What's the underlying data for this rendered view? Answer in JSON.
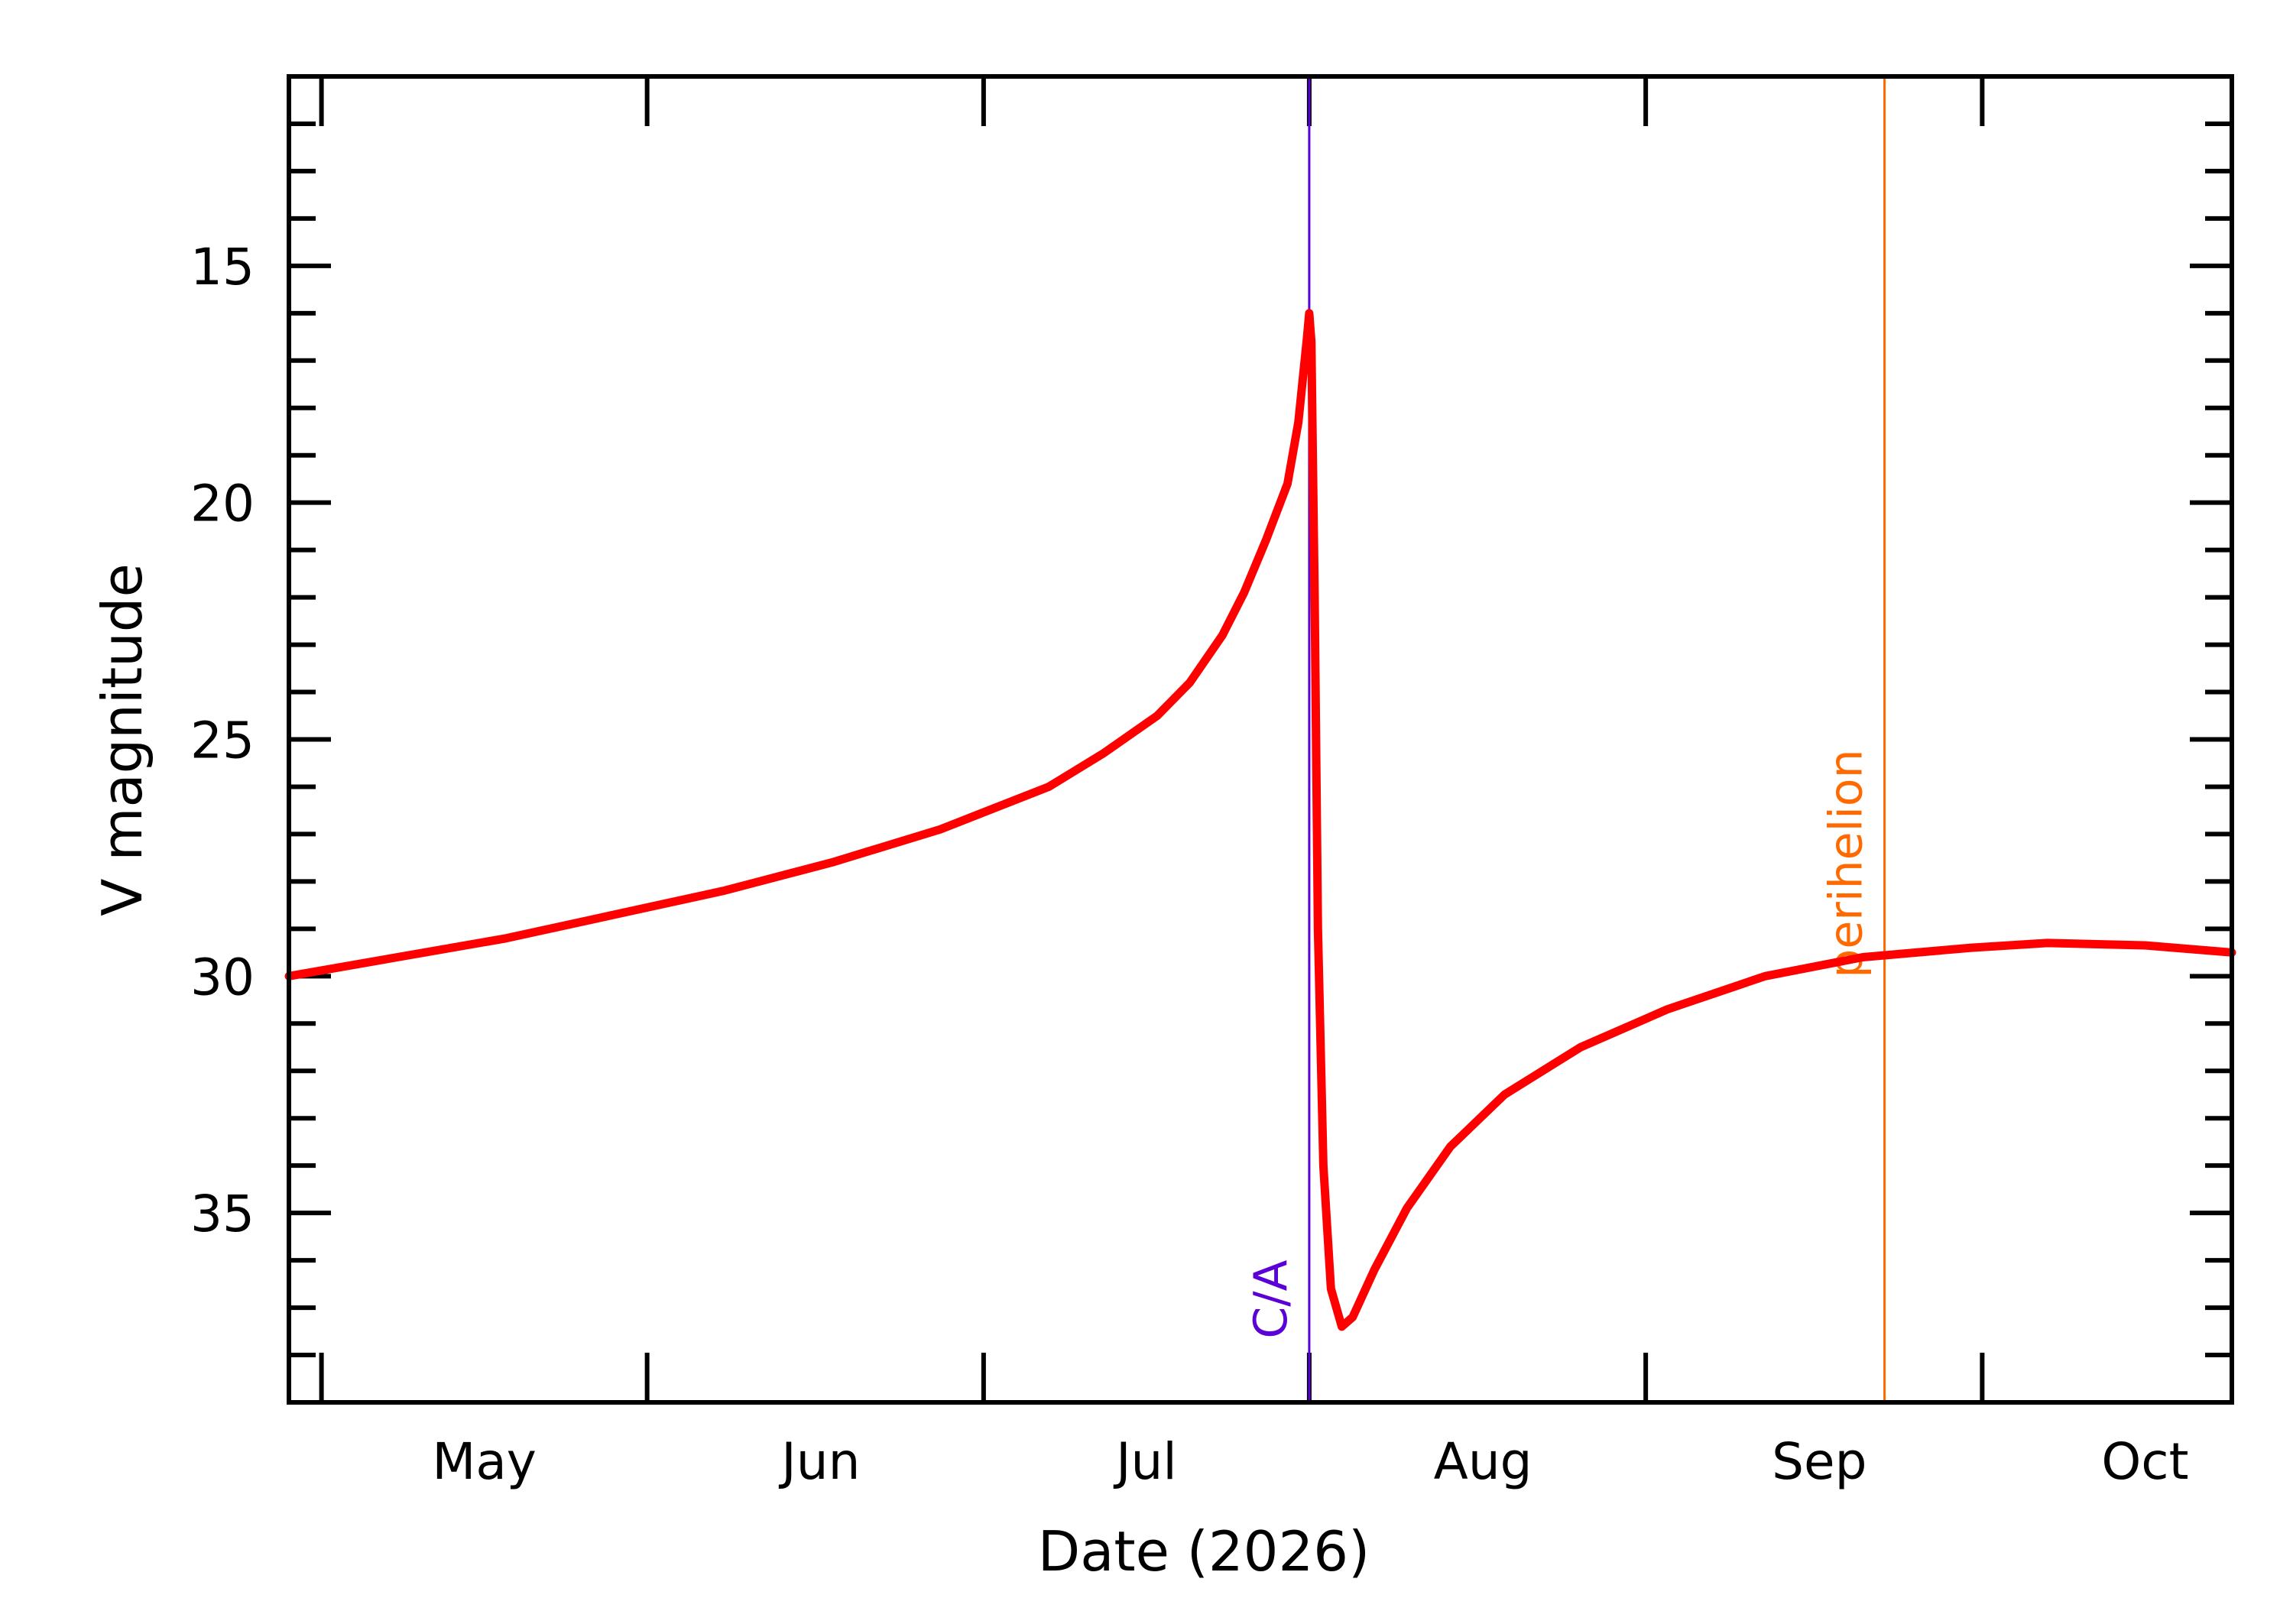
{
  "chart_data": {
    "type": "line",
    "title": "",
    "xlabel": "Date (2026)",
    "ylabel": "V magnitude",
    "x_range": [
      "2026-04-13",
      "2026-10-09"
    ],
    "ylim": [
      39.0,
      11.0
    ],
    "y_inverted": true,
    "x_tick_labels": [
      {
        "date": "2026-05-01",
        "label": "May"
      },
      {
        "date": "2026-06-01",
        "label": "Jun"
      },
      {
        "date": "2026-07-01",
        "label": "Jul"
      },
      {
        "date": "2026-08-01",
        "label": "Aug"
      },
      {
        "date": "2026-09-01",
        "label": "Sep"
      },
      {
        "date": "2026-10-01",
        "label": "Oct"
      }
    ],
    "x_major_ticks": [
      "2026-04-16",
      "2026-05-16",
      "2026-06-16",
      "2026-07-16",
      "2026-08-16",
      "2026-09-16"
    ],
    "y_ticks": [
      15,
      20,
      25,
      30,
      35
    ],
    "y_minor_step": 1,
    "grid": false,
    "series": [
      {
        "color": "#ff0000",
        "points": [
          {
            "x": "2026-04-13",
            "y": 30.0
          },
          {
            "x": "2026-04-23",
            "y": 29.6
          },
          {
            "x": "2026-05-03",
            "y": 29.2
          },
          {
            "x": "2026-05-13",
            "y": 28.7
          },
          {
            "x": "2026-05-23",
            "y": 28.2
          },
          {
            "x": "2026-06-02",
            "y": 27.6
          },
          {
            "x": "2026-06-12",
            "y": 26.9
          },
          {
            "x": "2026-06-22",
            "y": 26.0
          },
          {
            "x": "2026-06-27",
            "y": 25.3
          },
          {
            "x": "2026-07-02",
            "y": 24.5
          },
          {
            "x": "2026-07-05",
            "y": 23.8
          },
          {
            "x": "2026-07-08",
            "y": 22.8
          },
          {
            "x": "2026-07-10",
            "y": 21.9
          },
          {
            "x": "2026-07-12",
            "y": 20.8
          },
          {
            "x": "2026-07-14",
            "y": 19.6
          },
          {
            "x": "2026-07-15",
            "y": 18.3
          },
          {
            "x": "2026-07-15.8",
            "y": 16.5
          },
          {
            "x": "2026-07-16",
            "y": 16.0
          },
          {
            "x": "2026-07-16.2",
            "y": 16.6
          },
          {
            "x": "2026-07-16.5",
            "y": 22.0
          },
          {
            "x": "2026-07-16.8",
            "y": 29.0
          },
          {
            "x": "2026-07-17.3",
            "y": 34.0
          },
          {
            "x": "2026-07-18",
            "y": 36.6
          },
          {
            "x": "2026-07-19",
            "y": 37.4
          },
          {
            "x": "2026-07-20",
            "y": 37.2
          },
          {
            "x": "2026-07-22",
            "y": 36.2
          },
          {
            "x": "2026-07-25",
            "y": 34.9
          },
          {
            "x": "2026-07-29",
            "y": 33.6
          },
          {
            "x": "2026-08-03",
            "y": 32.5
          },
          {
            "x": "2026-08-10",
            "y": 31.5
          },
          {
            "x": "2026-08-18",
            "y": 30.7
          },
          {
            "x": "2026-08-27",
            "y": 30.0
          },
          {
            "x": "2026-09-05",
            "y": 29.6
          },
          {
            "x": "2026-09-15",
            "y": 29.4
          },
          {
            "x": "2026-09-22",
            "y": 29.3
          },
          {
            "x": "2026-10-01",
            "y": 29.35
          },
          {
            "x": "2026-10-09",
            "y": 29.5
          }
        ]
      }
    ],
    "markers": [
      {
        "label": "C/A",
        "x": "2026-07-16",
        "color": "#5b00d6"
      },
      {
        "label": "perihelion",
        "x": "2026-09-07",
        "color": "#ff6a00"
      }
    ]
  }
}
